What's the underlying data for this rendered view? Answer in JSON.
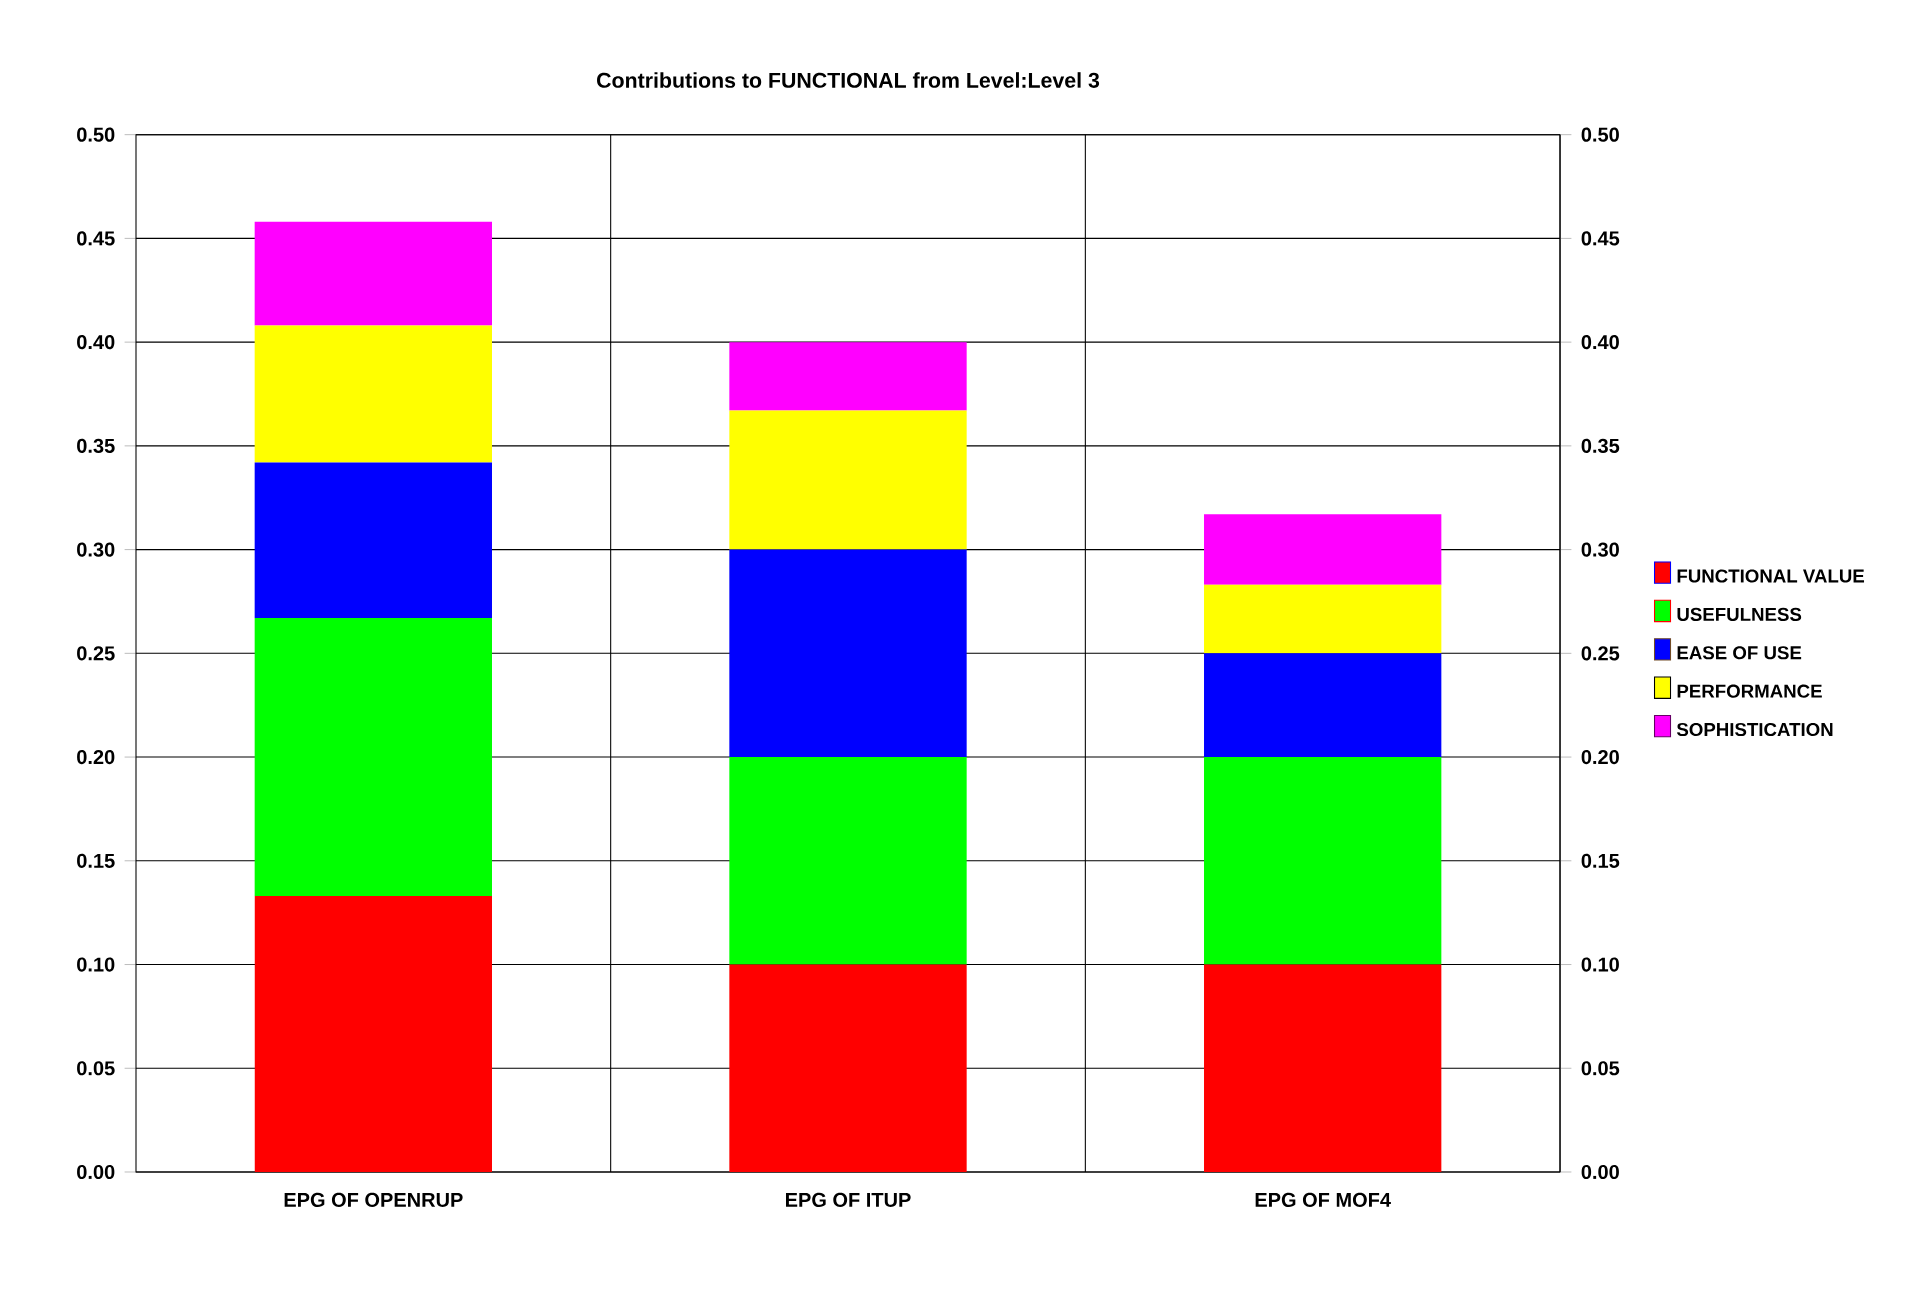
{
  "chart_data": {
    "type": "bar",
    "title": "Contributions to FUNCTIONAL from Level:Level 3",
    "stacked": true,
    "categories": [
      "EPG OF OPENRUP",
      "EPG OF ITUP",
      "EPG OF MOF4"
    ],
    "series": [
      {
        "name": "FUNCTIONAL VALUE",
        "color": "#ff0000",
        "values": [
          0.133,
          0.1,
          0.1
        ]
      },
      {
        "name": "USEFULNESS",
        "color": "#00ff00",
        "values": [
          0.134,
          0.1,
          0.1
        ]
      },
      {
        "name": "EASE OF USE",
        "color": "#0000ff",
        "values": [
          0.075,
          0.1,
          0.05
        ]
      },
      {
        "name": "PERFORMANCE",
        "color": "#ffff00",
        "values": [
          0.066,
          0.067,
          0.033
        ]
      },
      {
        "name": "SOPHISTICATION",
        "color": "#ff00ff",
        "values": [
          0.05,
          0.033,
          0.034
        ]
      }
    ],
    "ylim": [
      0,
      0.5
    ],
    "yticks": [
      {
        "value": 0,
        "label": "0.00"
      },
      {
        "value": 0.05,
        "label": "0.05"
      },
      {
        "value": 0.1,
        "label": "0.10"
      },
      {
        "value": 0.15,
        "label": "0.15"
      },
      {
        "value": 0.2,
        "label": "0.20"
      },
      {
        "value": 0.25,
        "label": "0.25"
      },
      {
        "value": 0.3,
        "label": "0.30"
      },
      {
        "value": 0.35,
        "label": "0.35"
      },
      {
        "value": 0.4,
        "label": "0.40"
      },
      {
        "value": 0.45,
        "label": "0.45"
      },
      {
        "value": 0.5,
        "label": "0.50"
      }
    ],
    "y2lim": [
      0,
      0.5
    ],
    "y2ticks": [
      {
        "value": 0,
        "label": "0.00"
      },
      {
        "value": 0.05,
        "label": "0.05"
      },
      {
        "value": 0.1,
        "label": "0.10"
      },
      {
        "value": 0.15,
        "label": "0.15"
      },
      {
        "value": 0.2,
        "label": "0.20"
      },
      {
        "value": 0.25,
        "label": "0.25"
      },
      {
        "value": 0.3,
        "label": "0.30"
      },
      {
        "value": 0.35,
        "label": "0.35"
      },
      {
        "value": 0.4,
        "label": "0.40"
      },
      {
        "value": 0.45,
        "label": "0.45"
      },
      {
        "value": 0.5,
        "label": "0.50"
      }
    ],
    "grid": true,
    "legend": "right"
  }
}
